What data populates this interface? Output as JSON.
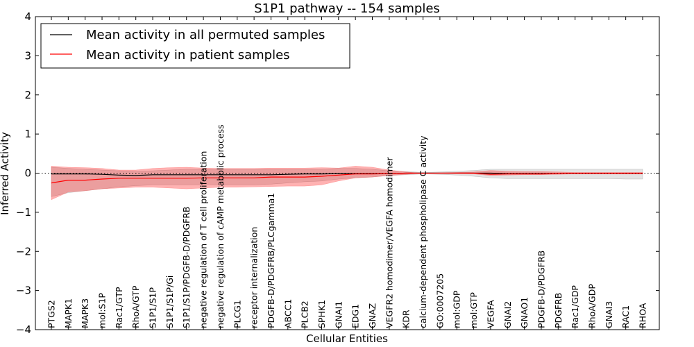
{
  "chart_data": {
    "type": "line",
    "title": "S1P1 pathway -- 154 samples",
    "xlabel": "Cellular Entities",
    "ylabel": "Inferred Activity",
    "ylim": [
      -4,
      4
    ],
    "yticks": [
      4,
      3,
      2,
      1,
      0,
      -1,
      -2,
      -3,
      -4
    ],
    "ytick_labels": [
      "4",
      "3",
      "2",
      "1",
      "0",
      "−1",
      "−2",
      "−3",
      "−4"
    ],
    "legend_position": "top-left",
    "zero_line": "dotted",
    "categories": [
      "PTGS2",
      "MAPK1",
      "MAPK3",
      "mol:S1P",
      "Rac1/GTP",
      "RhoA/GTP",
      "S1P1/S1P",
      "S1P1/S1P/Gi",
      "S1P1/S1P/PDGFB-D/PDGFRB",
      "negative regulation of T cell proliferation",
      "negative regulation of cAMP metabolic process",
      "PLCG1",
      "receptor internalization",
      "PDGFB-D/PDGFRB/PLCgamma1",
      "ABCC1",
      "PLCB2",
      "SPHK1",
      "GNAI1",
      "EDG1",
      "GNAZ",
      "VEGFR2 homodimer/VEGFA homodimer",
      "KDR",
      "calcium-dependent phospholipase C activity",
      "GO:0007205",
      "mol:GDP",
      "mol:GTP",
      "VEGFA",
      "GNAI2",
      "GNAO1",
      "PDGFB-D/PDGFRB",
      "PDGFRB",
      "Rac1/GDP",
      "RhoA/GDP",
      "GNAI3",
      "RAC1",
      "RHOA"
    ],
    "series": [
      {
        "name": "Mean activity in all permuted samples",
        "color": "#000000",
        "values": [
          -0.02,
          -0.02,
          -0.02,
          -0.03,
          -0.05,
          -0.06,
          -0.04,
          -0.04,
          -0.04,
          -0.04,
          -0.04,
          -0.04,
          -0.04,
          -0.04,
          -0.03,
          -0.02,
          -0.02,
          -0.01,
          -0.01,
          -0.01,
          -0.01,
          0.0,
          0.0,
          0.0,
          0.0,
          0.0,
          0.0,
          -0.01,
          -0.01,
          -0.01,
          -0.01,
          -0.01,
          -0.01,
          -0.01,
          -0.01,
          -0.01
        ],
        "band_lower": [
          -0.6,
          -0.5,
          -0.45,
          -0.4,
          -0.35,
          -0.32,
          -0.3,
          -0.3,
          -0.3,
          -0.3,
          -0.3,
          -0.3,
          -0.3,
          -0.28,
          -0.25,
          -0.22,
          -0.2,
          -0.15,
          -0.12,
          -0.1,
          -0.06,
          -0.04,
          -0.02,
          -0.03,
          -0.05,
          -0.08,
          -0.12,
          -0.14,
          -0.14,
          -0.14,
          -0.14,
          -0.14,
          -0.14,
          -0.14,
          -0.15,
          -0.15
        ],
        "band_upper": [
          0.15,
          0.12,
          0.1,
          0.08,
          0.06,
          0.05,
          0.06,
          0.08,
          0.1,
          0.1,
          0.1,
          0.1,
          0.1,
          0.1,
          0.1,
          0.1,
          0.1,
          0.12,
          0.12,
          0.1,
          0.06,
          0.04,
          0.02,
          0.03,
          0.05,
          0.07,
          0.1,
          0.1,
          0.1,
          0.1,
          0.1,
          0.1,
          0.1,
          0.1,
          0.1,
          0.1
        ]
      },
      {
        "name": "Mean activity in patient samples",
        "color": "#ff0000",
        "values": [
          -0.25,
          -0.18,
          -0.18,
          -0.15,
          -0.13,
          -0.13,
          -0.13,
          -0.13,
          -0.13,
          -0.12,
          -0.12,
          -0.12,
          -0.12,
          -0.1,
          -0.1,
          -0.1,
          -0.08,
          -0.05,
          -0.02,
          -0.02,
          -0.01,
          0.0,
          0.0,
          0.0,
          0.0,
          0.0,
          -0.03,
          -0.02,
          -0.02,
          -0.02,
          -0.01,
          -0.01,
          -0.01,
          -0.01,
          -0.01,
          -0.01
        ],
        "band_lower": [
          -0.68,
          -0.48,
          -0.45,
          -0.4,
          -0.38,
          -0.36,
          -0.36,
          -0.38,
          -0.4,
          -0.38,
          -0.36,
          -0.36,
          -0.35,
          -0.34,
          -0.33,
          -0.33,
          -0.3,
          -0.2,
          -0.12,
          -0.1,
          -0.06,
          -0.03,
          0.0,
          0.0,
          -0.01,
          -0.02,
          -0.06,
          -0.05,
          -0.04,
          -0.04,
          -0.03,
          -0.02,
          -0.02,
          -0.02,
          -0.02,
          -0.02
        ],
        "band_upper": [
          0.18,
          0.15,
          0.14,
          0.12,
          0.08,
          0.08,
          0.12,
          0.14,
          0.15,
          0.13,
          0.12,
          0.12,
          0.12,
          0.13,
          0.13,
          0.13,
          0.14,
          0.13,
          0.18,
          0.15,
          0.08,
          0.03,
          0.0,
          0.01,
          0.02,
          0.03,
          0.07,
          0.05,
          0.04,
          0.04,
          0.03,
          0.02,
          0.02,
          0.02,
          0.02,
          0.02
        ]
      }
    ]
  }
}
